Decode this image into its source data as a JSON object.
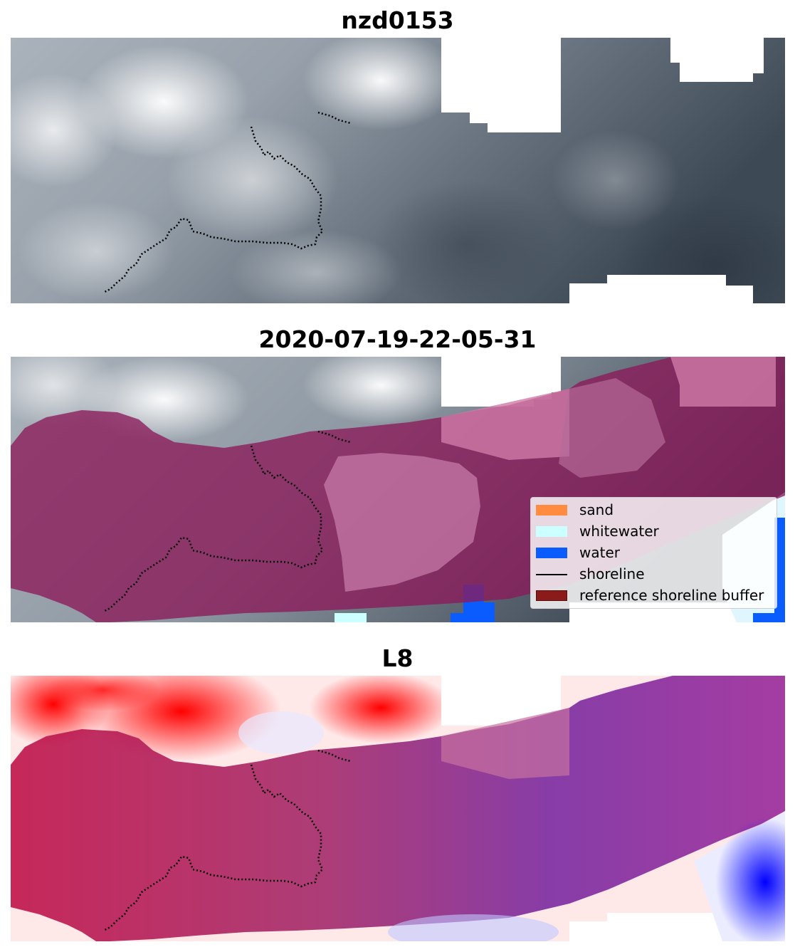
{
  "panels": [
    {
      "title": "nzd0153"
    },
    {
      "title": "2020-07-19-22-05-31"
    },
    {
      "title": "L8"
    }
  ],
  "legend": {
    "items": [
      {
        "label": "sand",
        "color": "#ff8c40"
      },
      {
        "label": "whitewater",
        "color": "#ccffff"
      },
      {
        "label": "water",
        "color": "#0a5cff"
      },
      {
        "label": "shoreline",
        "color": "#000000"
      },
      {
        "label": "reference shoreline buffer",
        "color": "#8b1a1a"
      }
    ]
  },
  "colors": {
    "classification_overlay": "#8b1a5a",
    "cloud_gray_dark": "#3b4653",
    "cloud_gray_light": "#e9ecef",
    "mndwi_red": "#ff0000",
    "mndwi_blue": "#0000ff"
  }
}
